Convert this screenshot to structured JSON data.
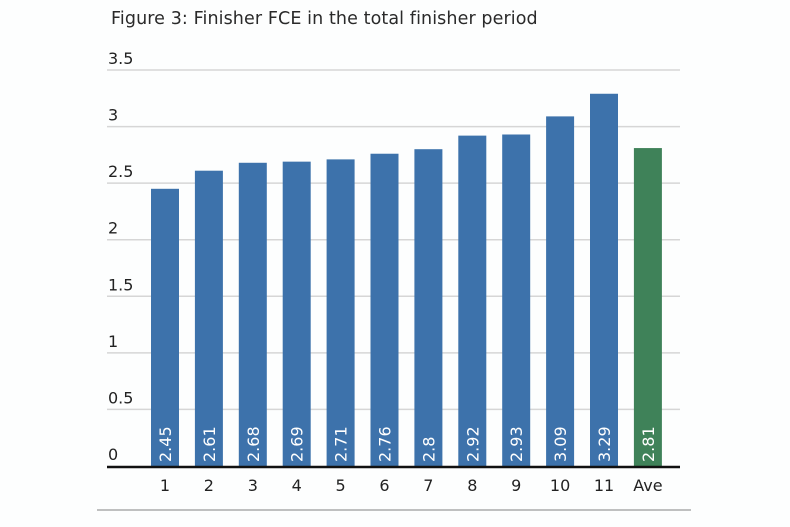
{
  "chart_data": {
    "type": "bar",
    "title": "Figure 3: Finisher FCE in the total finisher period",
    "xlabel": "",
    "ylabel": "",
    "categories": [
      "1",
      "2",
      "3",
      "4",
      "5",
      "6",
      "7",
      "8",
      "9",
      "10",
      "11",
      "Ave"
    ],
    "values": [
      2.45,
      2.61,
      2.68,
      2.69,
      2.71,
      2.76,
      2.8,
      2.92,
      2.93,
      3.09,
      3.29,
      2.81
    ],
    "data_labels": [
      "2.45",
      "2.61",
      "2.68",
      "2.69",
      "2.71",
      "2.76",
      "2.8",
      "2.92",
      "2.93",
      "3.09",
      "3.29",
      "2.81"
    ],
    "ylim": [
      0,
      3.5
    ],
    "yticks": [
      0,
      0.5,
      1,
      1.5,
      2,
      2.5,
      3,
      3.5
    ],
    "ytick_labels": [
      "0",
      "0.5",
      "1",
      "1.5",
      "2",
      "2.5",
      "3",
      "3.5"
    ],
    "grid": true,
    "legend": "none",
    "colors": {
      "bar": "#3d72ab",
      "average_bar": "#3f8259",
      "grid": "#d6d6d6",
      "axis": "#111111",
      "data_label": "#ffffff"
    },
    "highlight_category": "Ave"
  }
}
